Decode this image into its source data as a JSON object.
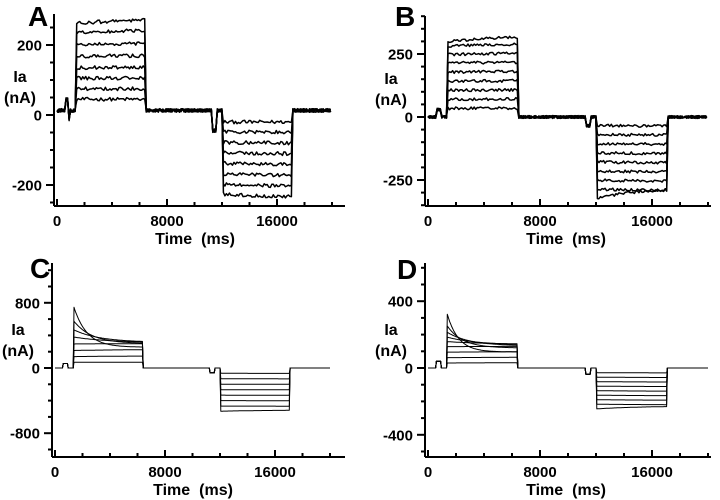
{
  "figure": {
    "background": "#ffffff",
    "trace_color": "#000000",
    "axis_color": "#000000"
  },
  "chart_data": [
    {
      "type": "line",
      "label": "A",
      "ylabel": "Ia (nA)",
      "ylabel_lines": [
        "Ia",
        "(nA)"
      ],
      "xlabel": "Time (ms)",
      "xticks_labeled": [
        0,
        8000,
        16000
      ],
      "xtick_minor_step_ms": 2000,
      "x_range_ms": [
        0,
        20000
      ],
      "yticks_labeled": [
        200,
        0,
        -200
      ],
      "ytick_minor_step": 50,
      "y_range_nA": [
        -260,
        288
      ],
      "baseline_nA": 13,
      "noise_nA": 5,
      "pulse1_window_ms": [
        1350,
        6400
      ],
      "pulse2_window_ms": [
        12050,
        17100
      ],
      "blips": [
        {
          "t": [
            600,
            790
          ],
          "amp": 32
        },
        {
          "t": [
            790,
            960
          ],
          "amp": -24
        },
        {
          "t": [
            11280,
            11600
          ],
          "amp": -58
        }
      ],
      "sweeps": [
        {
          "p": [
            45,
            45
          ],
          "n": [
            -20,
            -20
          ]
        },
        {
          "p": [
            75,
            75
          ],
          "n": [
            -48,
            -50
          ]
        },
        {
          "p": [
            105,
            105
          ],
          "n": [
            -78,
            -81
          ]
        },
        {
          "p": [
            135,
            136
          ],
          "n": [
            -108,
            -112
          ]
        },
        {
          "p": [
            168,
            170
          ],
          "n": [
            -138,
            -143
          ]
        },
        {
          "p": [
            202,
            206
          ],
          "n": [
            -168,
            -174
          ]
        },
        {
          "p": [
            236,
            243,
            4000
          ],
          "n": [
            -198,
            -206
          ]
        },
        {
          "p": [
            262,
            274,
            4000
          ],
          "n": [
            -226,
            -237,
            5000
          ]
        }
      ]
    },
    {
      "type": "line",
      "label": "B",
      "ylabel": "Ia (nA)",
      "ylabel_lines": [
        "Ia",
        "(nA)"
      ],
      "xlabel": "Time (ms)",
      "xticks_labeled": [
        0,
        8000,
        16000
      ],
      "xtick_minor_step_ms": 2000,
      "x_range_ms": [
        0,
        20000
      ],
      "yticks_labeled": [
        250,
        0,
        -250
      ],
      "ytick_minor_step": 50,
      "y_range_nA": [
        -353,
        400
      ],
      "baseline_nA": 0,
      "noise_nA": 5.5,
      "pulse1_window_ms": [
        1350,
        6400
      ],
      "pulse2_window_ms": [
        12050,
        17100
      ],
      "blips": [
        {
          "t": [
            600,
            930
          ],
          "amp": 30
        },
        {
          "t": [
            11280,
            11600
          ],
          "amp": -35
        }
      ],
      "sweeps": [
        {
          "p": [
            34,
            36
          ],
          "n": [
            -34,
            -36
          ]
        },
        {
          "p": [
            70,
            72
          ],
          "n": [
            -70,
            -72
          ]
        },
        {
          "p": [
            106,
            108
          ],
          "n": [
            -106,
            -109
          ]
        },
        {
          "p": [
            142,
            145
          ],
          "n": [
            -142,
            -146
          ]
        },
        {
          "p": [
            178,
            182
          ],
          "n": [
            -178,
            -183
          ]
        },
        {
          "p": [
            214,
            219
          ],
          "n": [
            -214,
            -220
          ]
        },
        {
          "p": [
            248,
            255
          ],
          "n": [
            -250,
            -257
          ]
        },
        {
          "p": [
            282,
            291
          ],
          "n": [
            -286,
            -294
          ]
        },
        {
          "p": [
            298,
            322,
            3500
          ],
          "n": [
            -325,
            -283,
            2600
          ]
        }
      ]
    },
    {
      "type": "line",
      "label": "C",
      "ylabel": "Ia (nA)",
      "ylabel_lines": [
        "Ia",
        "(nA)"
      ],
      "xlabel": "Time (ms)",
      "xticks_labeled": [
        0,
        8000,
        16000
      ],
      "xtick_minor_step_ms": 2000,
      "x_range_ms": [
        0,
        20000
      ],
      "yticks_labeled": [
        800,
        0,
        -800
      ],
      "ytick_minor_step": 200,
      "y_range_nA": [
        -1090,
        1288
      ],
      "baseline_nA": 0,
      "noise_nA": 0,
      "pulse1_window_ms": [
        1350,
        6400
      ],
      "pulse2_window_ms": [
        12050,
        17100
      ],
      "blips": [
        {
          "t": [
            600,
            930
          ],
          "amp": 55
        },
        {
          "t": [
            11280,
            11600
          ],
          "amp": -60
        }
      ],
      "sweeps": [
        {
          "p": [
            70,
            72,
            5000
          ],
          "n": [
            -65,
            -67
          ]
        },
        {
          "p": [
            140,
            150,
            5000
          ],
          "n": [
            -132,
            -134
          ]
        },
        {
          "p": [
            215,
            230,
            5000
          ],
          "n": [
            -199,
            -201
          ]
        },
        {
          "p": [
            295,
            300,
            5000
          ],
          "n": [
            -266,
            -268
          ]
        },
        {
          "p": [
            380,
            310,
            2600
          ],
          "n": [
            -333,
            -335
          ]
        },
        {
          "p": [
            470,
            315,
            1900
          ],
          "n": [
            -400,
            -402
          ]
        },
        {
          "p": [
            580,
            300,
            1300
          ],
          "n": [
            -467,
            -469
          ]
        },
        {
          "p": [
            760,
            255,
            950
          ],
          "n": [
            -530,
            -515,
            4000
          ]
        }
      ]
    },
    {
      "type": "line",
      "label": "D",
      "ylabel": "Ia (nA)",
      "ylabel_lines": [
        "Ia",
        "(nA)"
      ],
      "xlabel": "Time (ms)",
      "xticks_labeled": [
        0,
        8000,
        16000
      ],
      "xtick_minor_step_ms": 2000,
      "x_range_ms": [
        0,
        20000
      ],
      "yticks_labeled": [
        400,
        0,
        -400
      ],
      "ytick_minor_step": 100,
      "y_range_nA": [
        -533,
        629
      ],
      "baseline_nA": 0,
      "noise_nA": 0,
      "pulse1_window_ms": [
        1350,
        6400
      ],
      "pulse2_window_ms": [
        12050,
        17100
      ],
      "blips": [
        {
          "t": [
            600,
            930
          ],
          "amp": 40
        },
        {
          "t": [
            11280,
            11600
          ],
          "amp": -38
        }
      ],
      "sweeps": [
        {
          "p": [
            30,
            32,
            5000
          ],
          "n": [
            -28,
            -30
          ]
        },
        {
          "p": [
            62,
            65,
            5000
          ],
          "n": [
            -55,
            -58
          ]
        },
        {
          "p": [
            95,
            98,
            5000
          ],
          "n": [
            -82,
            -85
          ]
        },
        {
          "p": [
            128,
            130,
            5000
          ],
          "n": [
            -109,
            -112
          ]
        },
        {
          "p": [
            158,
            142,
            3000
          ],
          "n": [
            -136,
            -140
          ]
        },
        {
          "p": [
            185,
            137,
            2200
          ],
          "n": [
            -163,
            -167
          ]
        },
        {
          "p": [
            215,
            133,
            1600
          ],
          "n": [
            -190,
            -194
          ]
        },
        {
          "p": [
            255,
            120,
            1100
          ],
          "n": [
            -217,
            -221
          ]
        },
        {
          "p": [
            330,
            96,
            800
          ],
          "n": [
            -245,
            -228,
            3000
          ]
        }
      ]
    }
  ]
}
